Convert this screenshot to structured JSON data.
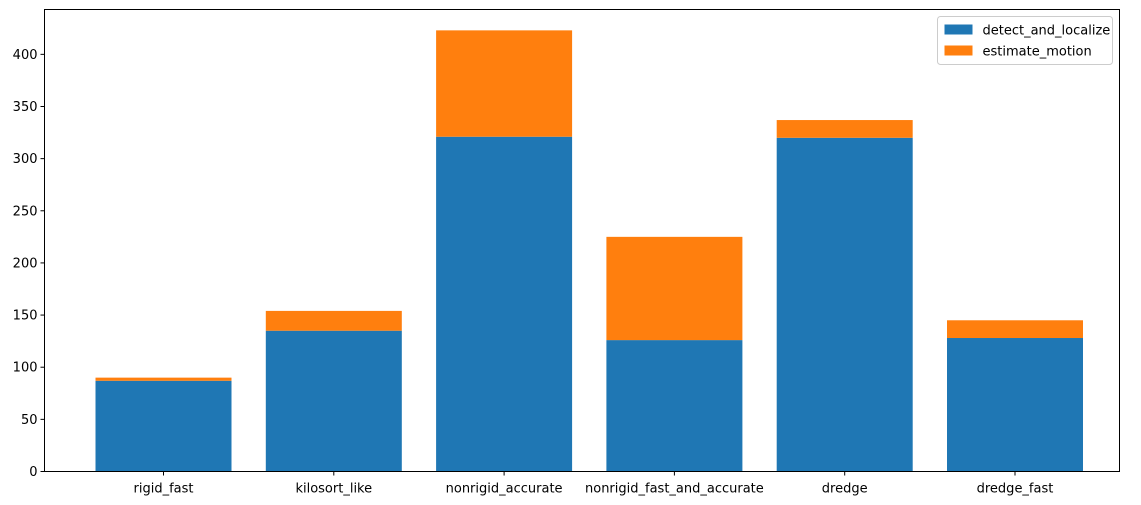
{
  "chart_data": {
    "type": "bar",
    "stacked": true,
    "categories": [
      "rigid_fast",
      "kilosort_like",
      "nonrigid_accurate",
      "nonrigid_fast_and_accurate",
      "dredge",
      "dredge_fast"
    ],
    "series": [
      {
        "name": "detect_and_localize",
        "color": "#1f77b4",
        "values": [
          87,
          135,
          321,
          126,
          320,
          128
        ]
      },
      {
        "name": "estimate_motion",
        "color": "#ff7f0e",
        "values": [
          3,
          19,
          102,
          99,
          17,
          17
        ]
      }
    ],
    "title": "",
    "xlabel": "",
    "ylabel": "",
    "ylim": [
      0,
      443
    ],
    "yticks": [
      0,
      50,
      100,
      150,
      200,
      250,
      300,
      350,
      400
    ],
    "grid": false,
    "legend_position": "top-right"
  }
}
